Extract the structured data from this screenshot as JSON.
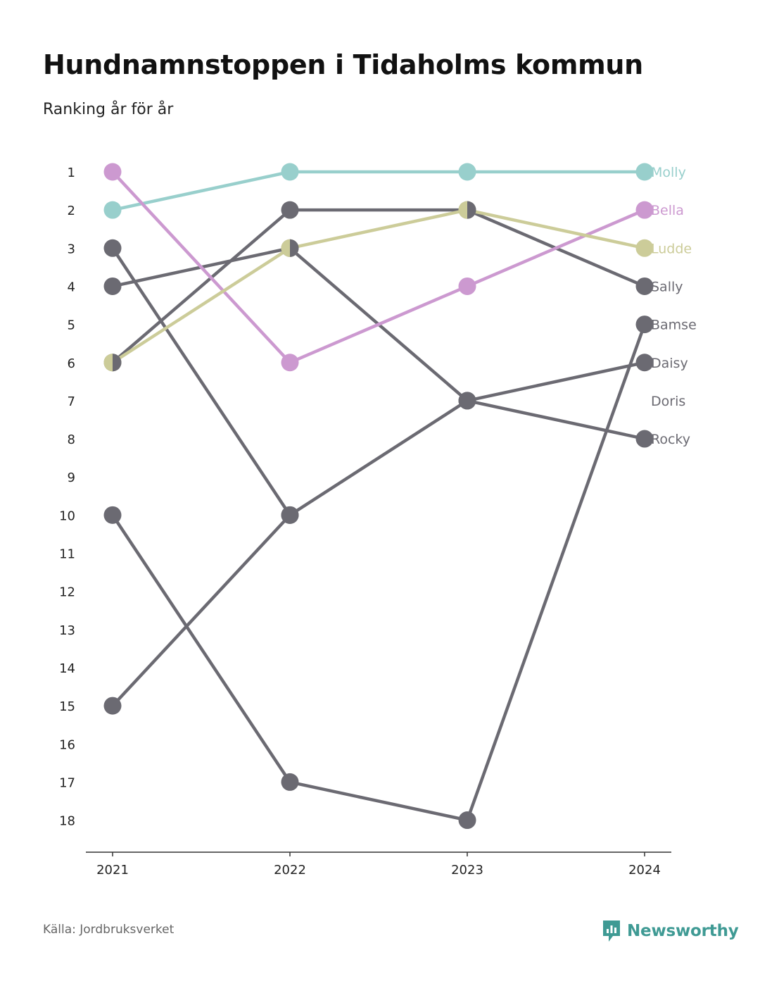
{
  "title": "Hundnamnstoppen i Tidaholms kommun",
  "subtitle": "Ranking år för år",
  "source": "Källa: Jordbruksverket",
  "brand": {
    "name": "Newsworthy",
    "icon": "newsworthy-logo-icon",
    "color": "#3f9a94"
  },
  "chart_data": {
    "type": "line",
    "title": "Hundnamnstoppen i Tidaholms kommun",
    "subtitle": "Ranking år för år",
    "x": [
      "2021",
      "2022",
      "2023",
      "2024"
    ],
    "yticks": [
      1,
      2,
      3,
      4,
      5,
      6,
      7,
      8,
      9,
      10,
      11,
      12,
      13,
      14,
      15,
      16,
      17,
      18
    ],
    "ylim": [
      1,
      18
    ],
    "y_inverted": true,
    "grid": false,
    "series": [
      {
        "name": "Molly",
        "color": "#98cfcc",
        "values": [
          2,
          1,
          1,
          1
        ]
      },
      {
        "name": "Bella",
        "color": "#cc99d0",
        "values": [
          1,
          6,
          4,
          2
        ]
      },
      {
        "name": "Ludde",
        "color": "#cccc99",
        "values": [
          6,
          3,
          2,
          3
        ]
      },
      {
        "name": "Sally",
        "color": "#6b6a72",
        "values": [
          6,
          2,
          2,
          4
        ]
      },
      {
        "name": "Bamse",
        "color": "#6b6a72",
        "values": [
          10,
          17,
          18,
          5
        ]
      },
      {
        "name": "Daisy",
        "color": "#6b6a72",
        "values": [
          15,
          10,
          7,
          6
        ]
      },
      {
        "name": "Doris",
        "color": "#6b6a72",
        "values": [
          null,
          null,
          null,
          null
        ]
      },
      {
        "name": "Rocky",
        "color": "#6b6a72",
        "values": [
          4,
          3,
          7,
          8
        ]
      },
      {
        "name": "",
        "color": "#6b6a72",
        "values": [
          3,
          10,
          null,
          null
        ]
      }
    ]
  }
}
